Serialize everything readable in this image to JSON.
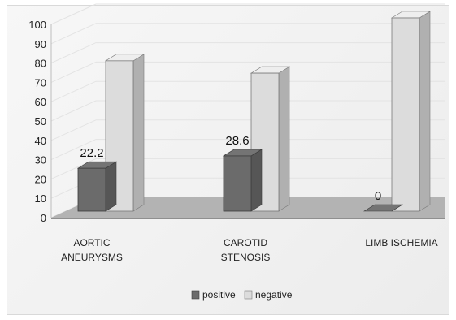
{
  "chart_data": {
    "type": "bar",
    "categories": [
      [
        "AORTIC",
        "ANEURYSMS"
      ],
      [
        "CAROTID",
        "STENOSIS"
      ],
      [
        "LIMB ISCHEMIA"
      ]
    ],
    "series": [
      {
        "name": "positive",
        "values": [
          22.2,
          28.6,
          0
        ],
        "color": "#6b6b6b",
        "labels": [
          "22.2",
          "28.6",
          "0"
        ]
      },
      {
        "name": "negative",
        "values": [
          77.8,
          71.4,
          100
        ],
        "color": "#dcdcdc"
      }
    ],
    "ylim": [
      0,
      100
    ],
    "yticks": [
      "0",
      "10",
      "20",
      "30",
      "40",
      "50",
      "60",
      "70",
      "80",
      "90",
      "100"
    ],
    "legend": "bottom",
    "grid": true,
    "style": "3d-clustered-column"
  }
}
